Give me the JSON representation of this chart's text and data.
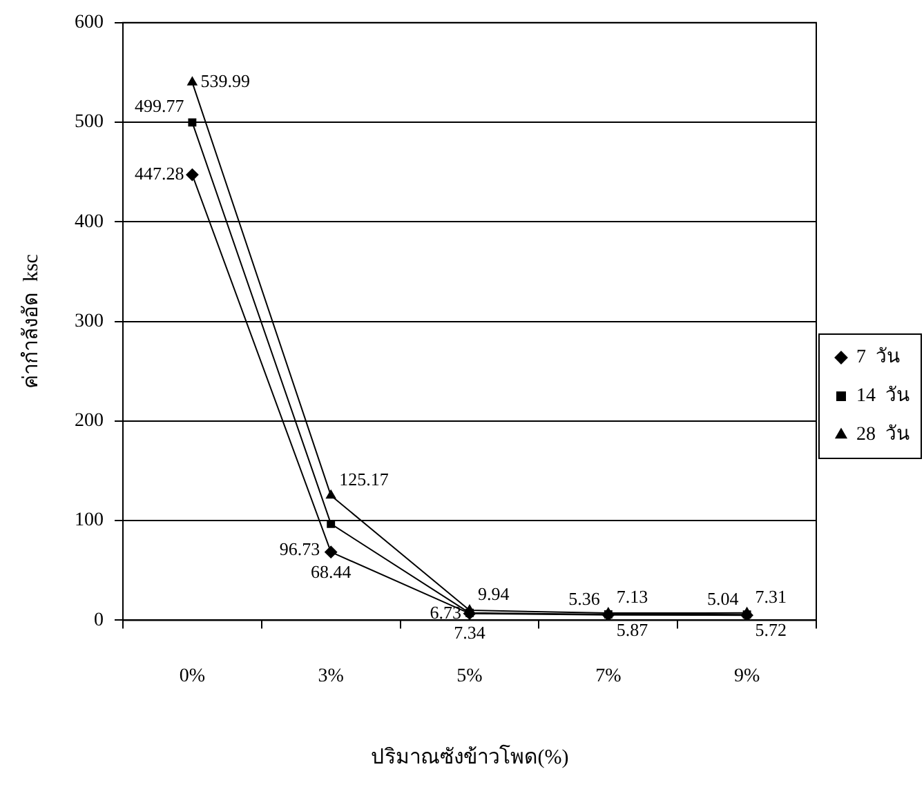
{
  "chart_data": {
    "type": "line",
    "xlabel": "ปริมาณซังข้าวโพด(%)",
    "ylabel": "ค่ากำลังอัด  ksc",
    "categories": [
      "0%",
      "3%",
      "5%",
      "7%",
      "9%"
    ],
    "series": [
      {
        "name": "7  วัน",
        "color": "#000000",
        "marker": "diamond",
        "values": [
          447.28,
          68.44,
          6.73,
          5.36,
          5.04
        ]
      },
      {
        "name": "14  วัน",
        "color": "#000000",
        "marker": "square",
        "values": [
          499.77,
          96.73,
          7.34,
          5.87,
          5.72
        ]
      },
      {
        "name": "28  วัน",
        "color": "#000000",
        "marker": "triangle",
        "values": [
          539.99,
          125.17,
          9.94,
          7.13,
          7.31
        ]
      }
    ],
    "ylim": [
      0,
      600
    ],
    "yticks": [
      0,
      100,
      200,
      300,
      400,
      500,
      600
    ],
    "grid": "y",
    "legend": "right",
    "data_labels": true
  }
}
